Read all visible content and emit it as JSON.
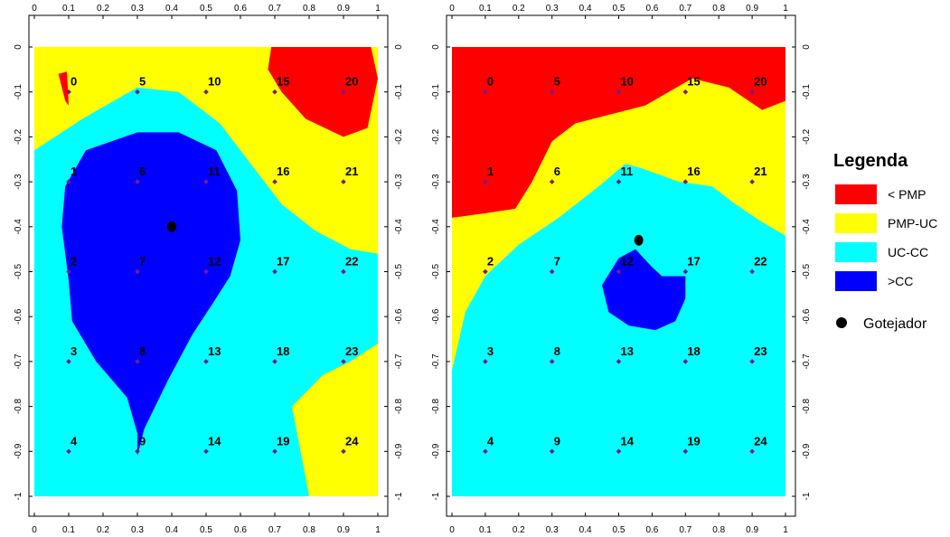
{
  "chart_data": [
    {
      "type": "heatmap",
      "title": "",
      "xlabel": "",
      "ylabel": "",
      "xlim": [
        0,
        1
      ],
      "ylim": [
        -1,
        0
      ],
      "x_ticks": [
        "0",
        "0.1",
        "0.2",
        "0.3",
        "0.4",
        "0.5",
        "0.6",
        "0.7",
        "0.8",
        "0.9",
        "1"
      ],
      "y_ticks": [
        "0",
        "-0.1",
        "-0.2",
        "-0.3",
        "-0.4",
        "-0.5",
        "-0.6",
        "-0.7",
        "-0.8",
        "-0.9",
        "-1"
      ],
      "dripper": {
        "x": 0.4,
        "y": -0.4
      },
      "points": [
        {
          "label": "0",
          "x": 0.1,
          "y": -0.1
        },
        {
          "label": "1",
          "x": 0.1,
          "y": -0.3
        },
        {
          "label": "2",
          "x": 0.1,
          "y": -0.5
        },
        {
          "label": "3",
          "x": 0.1,
          "y": -0.7
        },
        {
          "label": "4",
          "x": 0.1,
          "y": -0.9
        },
        {
          "label": "5",
          "x": 0.3,
          "y": -0.1
        },
        {
          "label": "6",
          "x": 0.3,
          "y": -0.3
        },
        {
          "label": "7",
          "x": 0.3,
          "y": -0.5
        },
        {
          "label": "8",
          "x": 0.3,
          "y": -0.7
        },
        {
          "label": "9",
          "x": 0.3,
          "y": -0.9
        },
        {
          "label": "10",
          "x": 0.5,
          "y": -0.1
        },
        {
          "label": "11",
          "x": 0.5,
          "y": -0.3
        },
        {
          "label": "12",
          "x": 0.5,
          "y": -0.5
        },
        {
          "label": "13",
          "x": 0.5,
          "y": -0.7
        },
        {
          "label": "14",
          "x": 0.5,
          "y": -0.9
        },
        {
          "label": "15",
          "x": 0.7,
          "y": -0.1
        },
        {
          "label": "16",
          "x": 0.7,
          "y": -0.3
        },
        {
          "label": "17",
          "x": 0.7,
          "y": -0.5
        },
        {
          "label": "18",
          "x": 0.7,
          "y": -0.7
        },
        {
          "label": "19",
          "x": 0.7,
          "y": -0.9
        },
        {
          "label": "20",
          "x": 0.9,
          "y": -0.1
        },
        {
          "label": "21",
          "x": 0.9,
          "y": -0.3
        },
        {
          "label": "22",
          "x": 0.9,
          "y": -0.5
        },
        {
          "label": "23",
          "x": 0.9,
          "y": -0.7
        },
        {
          "label": "24",
          "x": 0.9,
          "y": -0.9
        }
      ],
      "zones": [
        {
          "class": "PMP-UC",
          "polygon": [
            [
              0,
              0
            ],
            [
              1,
              0
            ],
            [
              1,
              -1
            ],
            [
              0,
              -1
            ]
          ]
        },
        {
          "class": "UC-CC",
          "polygon": [
            [
              0,
              -0.23
            ],
            [
              0.14,
              -0.16
            ],
            [
              0.3,
              -0.09
            ],
            [
              0.42,
              -0.1
            ],
            [
              0.54,
              -0.17
            ],
            [
              0.64,
              -0.27
            ],
            [
              0.72,
              -0.35
            ],
            [
              0.82,
              -0.41
            ],
            [
              0.92,
              -0.45
            ],
            [
              1,
              -0.46
            ],
            [
              1,
              -0.66
            ],
            [
              0.92,
              -0.7
            ],
            [
              0.84,
              -0.73
            ],
            [
              0.75,
              -0.8
            ],
            [
              0.8,
              -1
            ],
            [
              0,
              -1
            ]
          ]
        },
        {
          "class": "< PMP",
          "polygon": [
            [
              0.69,
              0
            ],
            [
              0.98,
              0
            ],
            [
              1,
              -0.07
            ],
            [
              0.97,
              -0.18
            ],
            [
              0.9,
              -0.2
            ],
            [
              0.79,
              -0.16
            ],
            [
              0.72,
              -0.1
            ],
            [
              0.68,
              -0.05
            ]
          ]
        },
        {
          "class": "< PMP",
          "polygon": [
            [
              0.07,
              -0.06
            ],
            [
              0.095,
              -0.055
            ],
            [
              0.1,
              -0.13
            ],
            [
              0.09,
              -0.12
            ],
            [
              0.08,
              -0.09
            ]
          ]
        },
        {
          "class": ">CC",
          "polygon": [
            [
              0.3,
              -0.19
            ],
            [
              0.42,
              -0.19
            ],
            [
              0.53,
              -0.23
            ],
            [
              0.59,
              -0.32
            ],
            [
              0.6,
              -0.43
            ],
            [
              0.57,
              -0.51
            ],
            [
              0.52,
              -0.57
            ],
            [
              0.46,
              -0.64
            ],
            [
              0.39,
              -0.74
            ],
            [
              0.32,
              -0.85
            ],
            [
              0.3,
              -0.91
            ],
            [
              0.3,
              -0.86
            ],
            [
              0.27,
              -0.78
            ],
            [
              0.18,
              -0.7
            ],
            [
              0.11,
              -0.61
            ],
            [
              0.1,
              -0.52
            ],
            [
              0.08,
              -0.4
            ],
            [
              0.09,
              -0.31
            ],
            [
              0.15,
              -0.23
            ]
          ]
        }
      ]
    },
    {
      "type": "heatmap",
      "title": "",
      "xlabel": "",
      "ylabel": "",
      "xlim": [
        0,
        1
      ],
      "ylim": [
        -1,
        0
      ],
      "x_ticks": [
        "0",
        "0.1",
        "0.2",
        "0.3",
        "0.4",
        "0.5",
        "0.6",
        "0.7",
        "0.8",
        "0.9",
        "1"
      ],
      "y_ticks": [
        "0",
        "-0.1",
        "-0.2",
        "-0.3",
        "-0.4",
        "-0.5",
        "-0.6",
        "-0.7",
        "-0.8",
        "-0.9",
        "-1"
      ],
      "dripper": {
        "x": 0.56,
        "y": -0.43
      },
      "points": [
        {
          "label": "0",
          "x": 0.1,
          "y": -0.1
        },
        {
          "label": "1",
          "x": 0.1,
          "y": -0.3
        },
        {
          "label": "2",
          "x": 0.1,
          "y": -0.5
        },
        {
          "label": "3",
          "x": 0.1,
          "y": -0.7
        },
        {
          "label": "4",
          "x": 0.1,
          "y": -0.9
        },
        {
          "label": "5",
          "x": 0.3,
          "y": -0.1
        },
        {
          "label": "6",
          "x": 0.3,
          "y": -0.3
        },
        {
          "label": "7",
          "x": 0.3,
          "y": -0.5
        },
        {
          "label": "8",
          "x": 0.3,
          "y": -0.7
        },
        {
          "label": "9",
          "x": 0.3,
          "y": -0.9
        },
        {
          "label": "10",
          "x": 0.5,
          "y": -0.1
        },
        {
          "label": "11",
          "x": 0.5,
          "y": -0.3
        },
        {
          "label": "12",
          "x": 0.5,
          "y": -0.5
        },
        {
          "label": "13",
          "x": 0.5,
          "y": -0.7
        },
        {
          "label": "14",
          "x": 0.5,
          "y": -0.9
        },
        {
          "label": "15",
          "x": 0.7,
          "y": -0.1
        },
        {
          "label": "16",
          "x": 0.7,
          "y": -0.3
        },
        {
          "label": "17",
          "x": 0.7,
          "y": -0.5
        },
        {
          "label": "18",
          "x": 0.7,
          "y": -0.7
        },
        {
          "label": "19",
          "x": 0.7,
          "y": -0.9
        },
        {
          "label": "20",
          "x": 0.9,
          "y": -0.1
        },
        {
          "label": "21",
          "x": 0.9,
          "y": -0.3
        },
        {
          "label": "22",
          "x": 0.9,
          "y": -0.5
        },
        {
          "label": "23",
          "x": 0.9,
          "y": -0.7
        },
        {
          "label": "24",
          "x": 0.9,
          "y": -0.9
        }
      ],
      "zones": [
        {
          "class": "UC-CC",
          "polygon": [
            [
              0,
              0
            ],
            [
              1,
              0
            ],
            [
              1,
              -1
            ],
            [
              0,
              -1
            ]
          ]
        },
        {
          "class": "PMP-UC",
          "polygon": [
            [
              0,
              0
            ],
            [
              1,
              0
            ],
            [
              1,
              -0.42
            ],
            [
              0.93,
              -0.39
            ],
            [
              0.85,
              -0.35
            ],
            [
              0.78,
              -0.31
            ],
            [
              0.68,
              -0.3
            ],
            [
              0.57,
              -0.27
            ],
            [
              0.52,
              -0.26
            ],
            [
              0.44,
              -0.31
            ],
            [
              0.32,
              -0.38
            ],
            [
              0.2,
              -0.44
            ],
            [
              0.1,
              -0.51
            ],
            [
              0.04,
              -0.59
            ],
            [
              0,
              -0.72
            ]
          ]
        },
        {
          "class": "< PMP",
          "polygon": [
            [
              0,
              0
            ],
            [
              1,
              0
            ],
            [
              1,
              -0.12
            ],
            [
              0.93,
              -0.14
            ],
            [
              0.83,
              -0.09
            ],
            [
              0.72,
              -0.07
            ],
            [
              0.58,
              -0.13
            ],
            [
              0.37,
              -0.17
            ],
            [
              0.3,
              -0.21
            ],
            [
              0.24,
              -0.3
            ],
            [
              0.19,
              -0.36
            ],
            [
              0.1,
              -0.37
            ],
            [
              0,
              -0.38
            ]
          ]
        },
        {
          "class": ">CC",
          "polygon": [
            [
              0.5,
              -0.47
            ],
            [
              0.55,
              -0.45
            ],
            [
              0.6,
              -0.49
            ],
            [
              0.63,
              -0.51
            ],
            [
              0.7,
              -0.51
            ],
            [
              0.7,
              -0.56
            ],
            [
              0.67,
              -0.61
            ],
            [
              0.61,
              -0.63
            ],
            [
              0.53,
              -0.62
            ],
            [
              0.47,
              -0.59
            ],
            [
              0.45,
              -0.53
            ]
          ]
        }
      ]
    }
  ],
  "legend": {
    "title": "Legenda",
    "items": [
      {
        "label": "< PMP",
        "color": "#FF0000"
      },
      {
        "label": "PMP-UC",
        "color": "#FFFF00"
      },
      {
        "label": "UC-CC",
        "color": "#00FFFF"
      },
      {
        "label": ">CC",
        "color": "#0000FF"
      }
    ],
    "dripper_label": "Gotejador"
  },
  "colors": {
    "< PMP": "#FF0000",
    "PMP-UC": "#FFFF00",
    "UC-CC": "#00FFFF",
    ">CC": "#0000FF",
    "point_marker": "#7a1a8a",
    "dripper": "#000000"
  }
}
